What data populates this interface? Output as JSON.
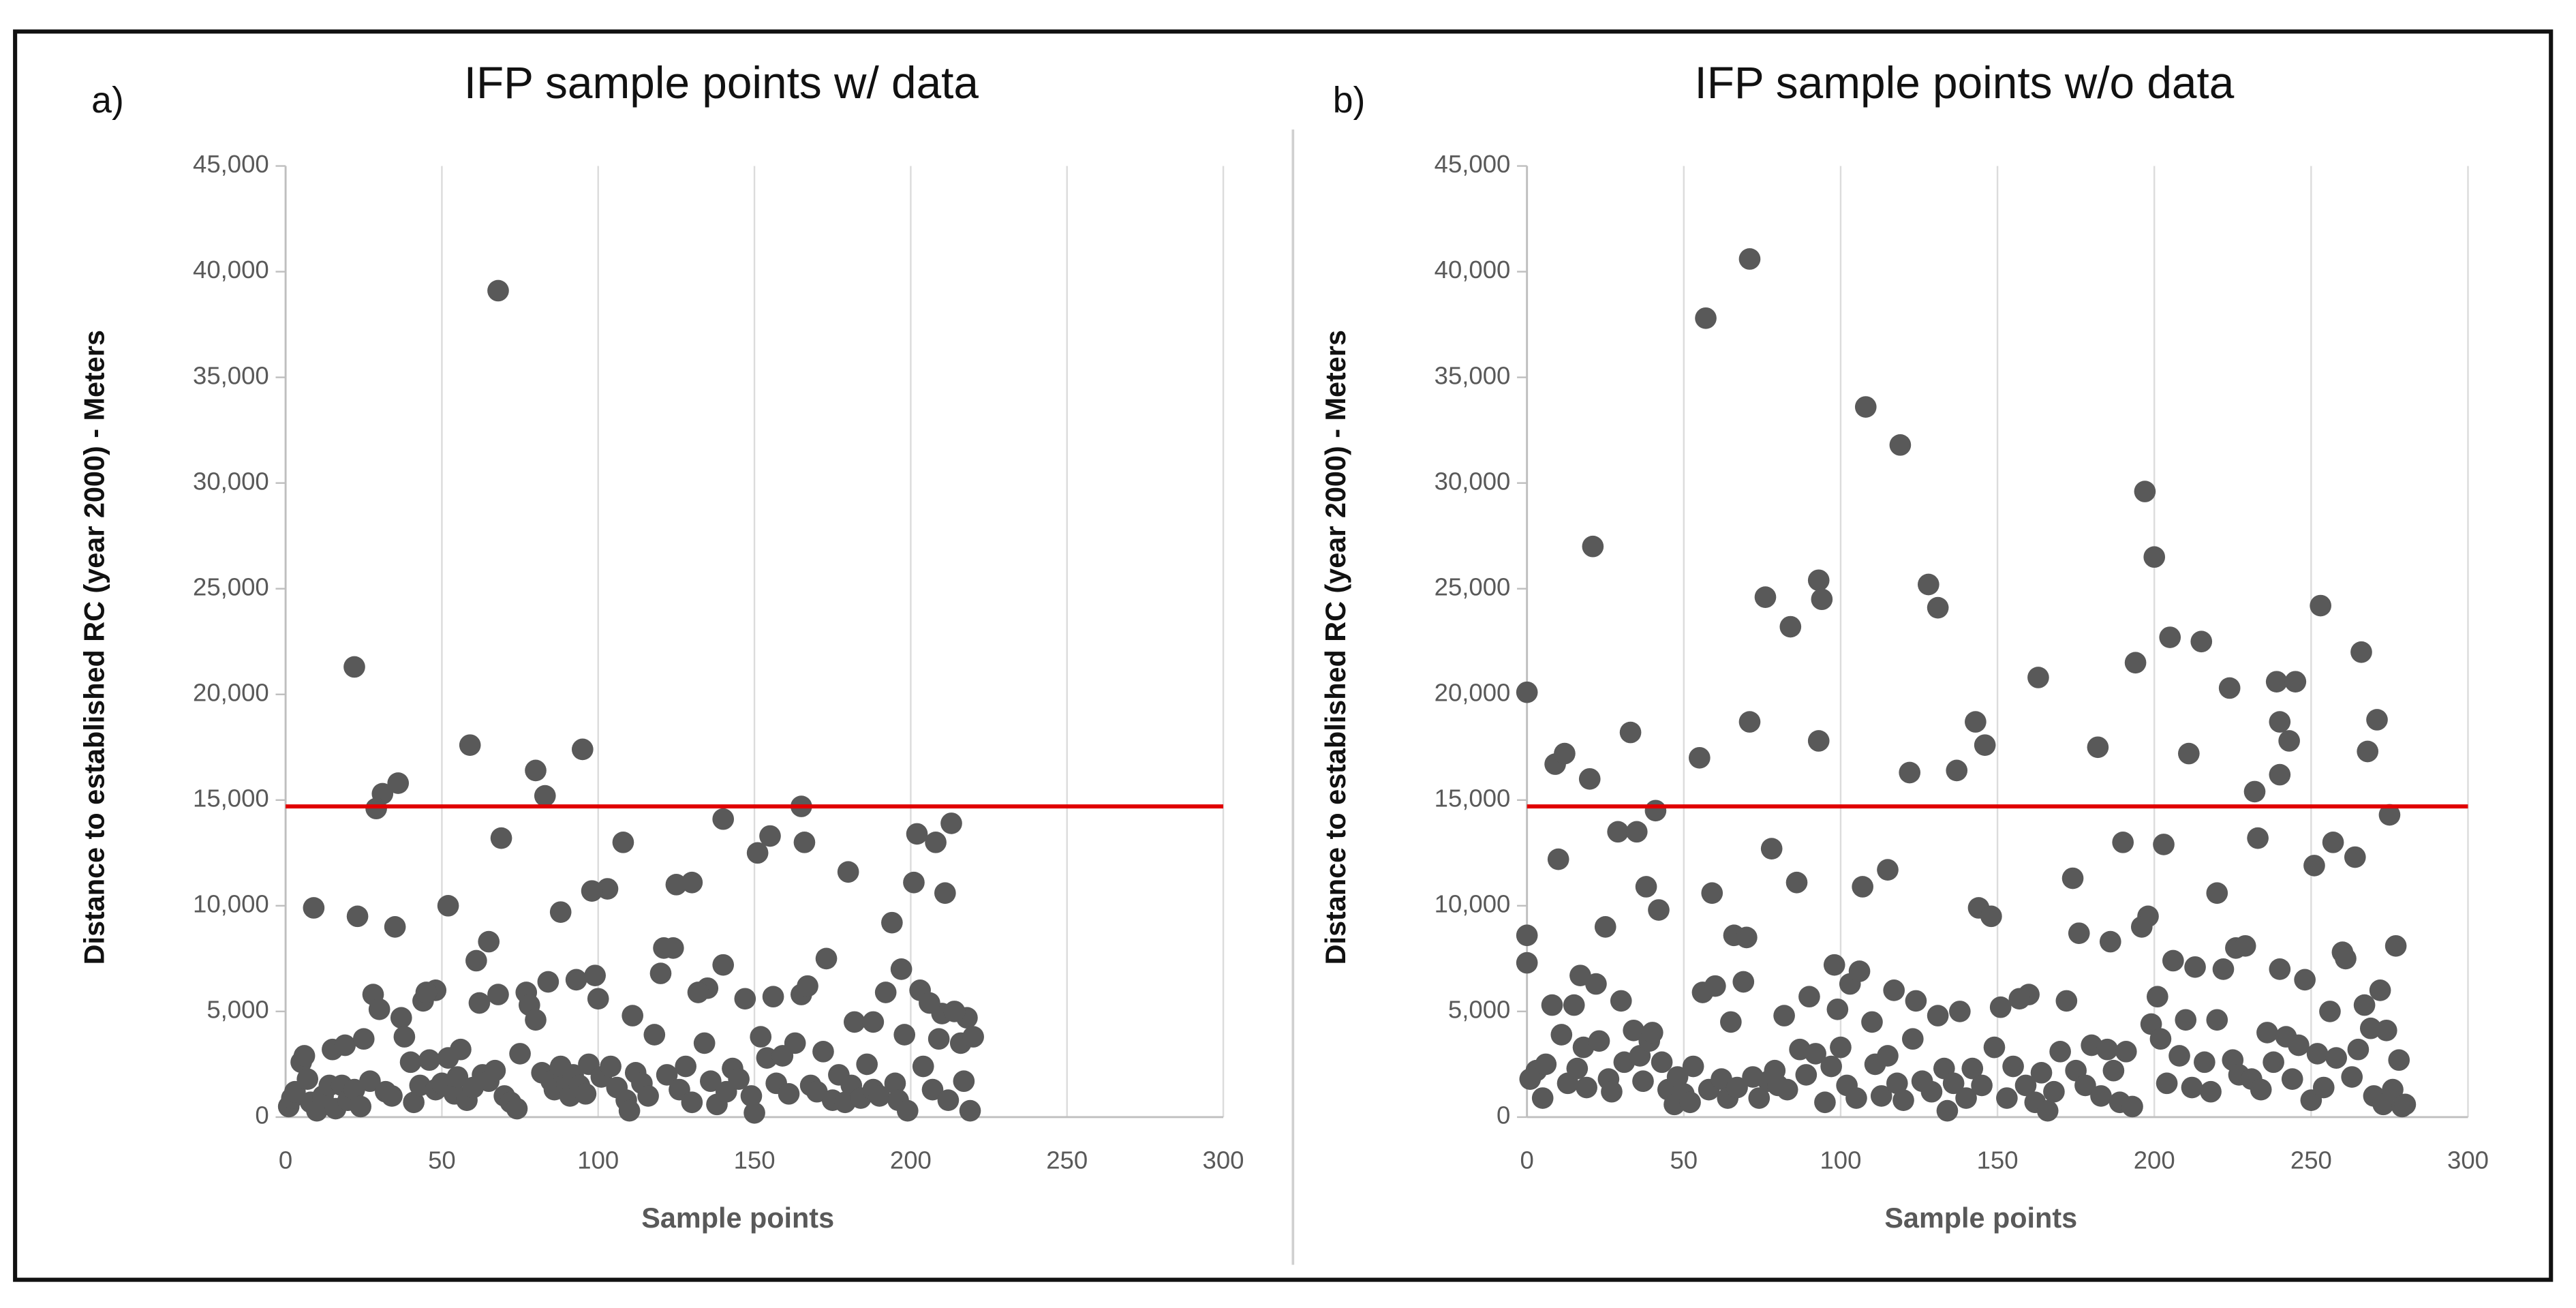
{
  "chart_data": [
    {
      "type": "scatter",
      "panel_label": "a)",
      "title": "IFP sample points w/ data",
      "x_label": "Sample points",
      "y_label": "Distance to established RC (year 2000) - Meters",
      "color": "#595959",
      "grid": "x",
      "reference_line": {
        "value": 14700,
        "color": "#e00000"
      },
      "xlim": [
        0,
        300
      ],
      "xticks": [
        0,
        50,
        100,
        150,
        200,
        250,
        300
      ],
      "ylim": [
        0,
        45000
      ],
      "yticks": [
        0,
        {
          "value": 5000,
          "label": "5,000"
        },
        {
          "value": 10000,
          "label": "10,000"
        },
        {
          "value": 15000,
          "label": "15,000"
        },
        {
          "value": 20000,
          "label": "20,000"
        },
        {
          "value": 25000,
          "label": "25,000"
        },
        {
          "value": 30000,
          "label": "30,000"
        },
        {
          "value": 35000,
          "label": "35,000"
        },
        {
          "value": 40000,
          "label": "40,000"
        },
        {
          "value": 45000,
          "label": "45,000"
        }
      ],
      "x": [
        68,
        22,
        59,
        80,
        95,
        83,
        36,
        31,
        29,
        165,
        140,
        213,
        202,
        155,
        69,
        166,
        108,
        208,
        130,
        125,
        180,
        201,
        103,
        98,
        211,
        9,
        52,
        23,
        35,
        88,
        194,
        151,
        121,
        65,
        173,
        140,
        61,
        197,
        84,
        93,
        99,
        77,
        48,
        28,
        68,
        135,
        156,
        165,
        111,
        182,
        188,
        210,
        218,
        203,
        1,
        2,
        3,
        5,
        6,
        7,
        8,
        10,
        12,
        14,
        15,
        16,
        18,
        19,
        20,
        22,
        24,
        25,
        27,
        30,
        32,
        34,
        37,
        38,
        40,
        41,
        43,
        44,
        45,
        46,
        48,
        50,
        52,
        54,
        55,
        56,
        58,
        60,
        62,
        63,
        65,
        67,
        70,
        72,
        74,
        75,
        78,
        80,
        82,
        85,
        86,
        88,
        90,
        91,
        92,
        94,
        96,
        97,
        100,
        101,
        104,
        106,
        109,
        110,
        112,
        114,
        116,
        118,
        120,
        122,
        124,
        126,
        128,
        130,
        132,
        134,
        136,
        138,
        141,
        143,
        145,
        147,
        149,
        150,
        152,
        154,
        157,
        159,
        161,
        163,
        167,
        168,
        170,
        172,
        175,
        177,
        179,
        181,
        184,
        186,
        188,
        190,
        192,
        195,
        196,
        198,
        199,
        204,
        206,
        207,
        209,
        212,
        214,
        216,
        217,
        219,
        220
      ],
      "values": [
        39100,
        21300,
        17600,
        16400,
        17400,
        15200,
        15800,
        15300,
        14600,
        14700,
        14100,
        13900,
        13400,
        13300,
        13200,
        13000,
        13000,
        13000,
        11100,
        11000,
        11600,
        11100,
        10800,
        10700,
        10600,
        9900,
        10000,
        9500,
        9000,
        9700,
        9200,
        12500,
        8000,
        8300,
        7500,
        7200,
        7400,
        7000,
        6400,
        6500,
        6700,
        5900,
        6000,
        5800,
        5800,
        6100,
        5700,
        5800,
        4800,
        4500,
        4500,
        4900,
        4700,
        6000,
        500,
        900,
        1200,
        2600,
        2900,
        1800,
        700,
        300,
        1000,
        1500,
        3200,
        400,
        1500,
        3400,
        800,
        1300,
        500,
        3700,
        1700,
        5100,
        1200,
        1000,
        4700,
        3800,
        2600,
        700,
        1500,
        5500,
        5900,
        2700,
        1300,
        1600,
        2800,
        1100,
        1900,
        3200,
        800,
        1400,
        5400,
        2000,
        1700,
        2200,
        1000,
        700,
        400,
        3000,
        5300,
        4600,
        2100,
        1700,
        1300,
        2400,
        1600,
        1000,
        2000,
        1500,
        1100,
        2500,
        5600,
        1900,
        2400,
        1400,
        800,
        300,
        2100,
        1600,
        1000,
        3900,
        6800,
        2000,
        8000,
        1300,
        2400,
        700,
        5900,
        3500,
        1700,
        600,
        1200,
        2300,
        1800,
        5600,
        1000,
        200,
        3800,
        2800,
        1600,
        2900,
        1100,
        3500,
        6200,
        1500,
        1200,
        3100,
        800,
        2000,
        700,
        1500,
        900,
        2500,
        1300,
        1000,
        5900,
        1600,
        800,
        3900,
        300,
        2400,
        5400,
        1300,
        3700,
        800,
        5000,
        3500,
        1700,
        300,
        3800
      ]
    },
    {
      "type": "scatter",
      "panel_label": "b)",
      "title": "IFP sample points w/o data",
      "x_label": "Sample points",
      "y_label": "Distance to established RC (year 2000) - Meters",
      "color": "#595959",
      "grid": "x",
      "reference_line": {
        "value": 14700,
        "color": "#e00000"
      },
      "xlim": [
        0,
        300
      ],
      "xticks": [
        0,
        50,
        100,
        150,
        200,
        250,
        300
      ],
      "ylim": [
        0,
        45000
      ],
      "yticks": [
        0,
        {
          "value": 5000,
          "label": "5,000"
        },
        {
          "value": 10000,
          "label": "10,000"
        },
        {
          "value": 15000,
          "label": "15,000"
        },
        {
          "value": 20000,
          "label": "20,000"
        },
        {
          "value": 25000,
          "label": "25,000"
        },
        {
          "value": 30000,
          "label": "30,000"
        },
        {
          "value": 35000,
          "label": "35,000"
        },
        {
          "value": 40000,
          "label": "40,000"
        },
        {
          "value": 45000,
          "label": "45,000"
        }
      ],
      "x": [
        57,
        71,
        108,
        119,
        21,
        197,
        200,
        93,
        94,
        76,
        84,
        128,
        131,
        253,
        205,
        215,
        266,
        194,
        163,
        224,
        239,
        245,
        0,
        71,
        33,
        93,
        143,
        182,
        211,
        268,
        271,
        240,
        243,
        240,
        55,
        9,
        12,
        20,
        122,
        137,
        146,
        232,
        41,
        275,
        29,
        35,
        233,
        190,
        203,
        251,
        257,
        264,
        78,
        10,
        115,
        174,
        86,
        107,
        220,
        38,
        42,
        59,
        144,
        148,
        198,
        25,
        0,
        66,
        70,
        176,
        186,
        226,
        260,
        277,
        0,
        17,
        98,
        160,
        1,
        3,
        5,
        6,
        8,
        11,
        13,
        15,
        16,
        18,
        19,
        22,
        23,
        26,
        27,
        30,
        31,
        34,
        36,
        37,
        39,
        40,
        43,
        45,
        47,
        48,
        50,
        52,
        53,
        56,
        58,
        60,
        62,
        64,
        65,
        67,
        69,
        72,
        74,
        77,
        79,
        80,
        82,
        83,
        87,
        89,
        90,
        92,
        95,
        97,
        99,
        100,
        102,
        103,
        105,
        106,
        110,
        111,
        113,
        115,
        117,
        118,
        120,
        123,
        124,
        126,
        129,
        131,
        133,
        134,
        136,
        138,
        140,
        142,
        145,
        149,
        151,
        153,
        155,
        157,
        159,
        162,
        164,
        166,
        168,
        170,
        172,
        175,
        178,
        180,
        183,
        185,
        187,
        189,
        191,
        193,
        196,
        199,
        201,
        202,
        204,
        206,
        208,
        210,
        212,
        213,
        216,
        218,
        220,
        222,
        225,
        227,
        229,
        231,
        234,
        236,
        238,
        240,
        242,
        244,
        246,
        248,
        250,
        252,
        254,
        256,
        258,
        261,
        263,
        265,
        267,
        269,
        270,
        272,
        273,
        274,
        276,
        278,
        279,
        280
      ],
      "values": [
        37800,
        40600,
        33600,
        31800,
        27000,
        29600,
        26500,
        25400,
        24500,
        24600,
        23200,
        25200,
        24100,
        24200,
        22700,
        22500,
        22000,
        21500,
        20800,
        20300,
        20600,
        20600,
        20100,
        18700,
        18200,
        17800,
        18700,
        17500,
        17200,
        17300,
        18800,
        18700,
        17800,
        16200,
        17000,
        16700,
        17200,
        16000,
        16300,
        16400,
        17600,
        15400,
        14500,
        14300,
        13500,
        13500,
        13200,
        13000,
        12900,
        11900,
        13000,
        12300,
        12700,
        12200,
        11700,
        11300,
        11100,
        10900,
        10600,
        10900,
        9800,
        10600,
        9900,
        9500,
        9500,
        9000,
        8600,
        8600,
        8500,
        8700,
        8300,
        8000,
        7800,
        8100,
        7300,
        6700,
        7200,
        5800,
        1800,
        2200,
        900,
        2500,
        5300,
        3900,
        1600,
        5300,
        2300,
        3300,
        1400,
        6300,
        3600,
        1800,
        1200,
        5500,
        2600,
        4100,
        2900,
        1700,
        3600,
        4000,
        2600,
        1300,
        600,
        1900,
        1100,
        700,
        2400,
        5900,
        1300,
        6200,
        1800,
        900,
        4500,
        1400,
        6400,
        1900,
        900,
        1700,
        2200,
        1500,
        4800,
        1300,
        3200,
        2000,
        5700,
        3000,
        700,
        2400,
        5100,
        3300,
        1500,
        6300,
        900,
        6900,
        4500,
        2500,
        1000,
        2900,
        6000,
        1600,
        800,
        3700,
        5500,
        1700,
        1200,
        4800,
        2300,
        300,
        1600,
        5000,
        900,
        2300,
        1500,
        3300,
        5200,
        900,
        2400,
        5600,
        1500,
        700,
        2100,
        300,
        1200,
        3100,
        5500,
        2200,
        1500,
        3400,
        1000,
        3200,
        2200,
        700,
        3100,
        500,
        9000,
        4400,
        5700,
        3700,
        1600,
        7400,
        2900,
        4600,
        1400,
        7100,
        2600,
        1200,
        4600,
        7000,
        2700,
        2000,
        8100,
        1800,
        1300,
        4000,
        2600,
        7000,
        3800,
        1800,
        3400,
        6500,
        800,
        3000,
        1400,
        5000,
        2800,
        7500,
        1900,
        3200,
        5300,
        4200,
        1000,
        6000,
        600,
        4100,
        1300,
        2700,
        500,
        600
      ]
    }
  ]
}
